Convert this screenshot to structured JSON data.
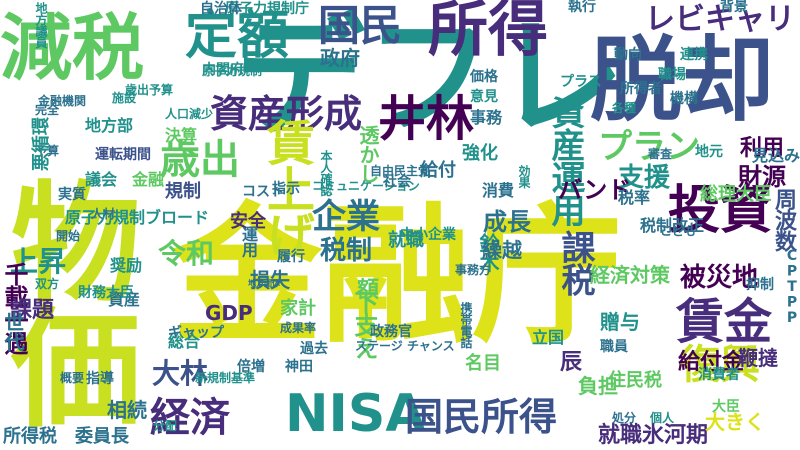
{
  "palette": {
    "lime": "#c8e020",
    "yellow": "#dde318",
    "green": "#5ec962",
    "teal": "#21918c",
    "teal_blue": "#2c728e",
    "blue": "#3b528b",
    "indigo": "#472d7b",
    "violet": "#440154",
    "sea": "#28ae80"
  },
  "words": [
    {
      "text": "デフレ",
      "color": "teal"
    },
    {
      "text": "金融庁",
      "color": "yellow"
    },
    {
      "text": "物価",
      "color": "lime"
    },
    {
      "text": "減税",
      "color": "green"
    },
    {
      "text": "所得",
      "color": "indigo"
    },
    {
      "text": "脱却",
      "color": "blue"
    },
    {
      "text": "国民",
      "color": "blue"
    },
    {
      "text": "定額",
      "color": "teal"
    },
    {
      "text": "レビキャリ",
      "color": "indigo"
    },
    {
      "text": "資産形成",
      "color": "indigo"
    },
    {
      "text": "井林",
      "color": "violet"
    },
    {
      "text": "賃上げ",
      "color": "lime"
    },
    {
      "text": "資産運用",
      "color": "teal"
    },
    {
      "text": "投資",
      "color": "violet"
    },
    {
      "text": "企業",
      "color": "teal_blue"
    },
    {
      "text": "歳出",
      "color": "green"
    },
    {
      "text": "プラン",
      "color": "green"
    },
    {
      "text": "支援",
      "color": "teal"
    },
    {
      "text": "NISA",
      "color": "teal"
    },
    {
      "text": "国民所得",
      "color": "blue"
    },
    {
      "text": "経済",
      "color": "indigo"
    },
    {
      "text": "賃金",
      "color": "indigo"
    },
    {
      "text": "復興",
      "color": "lime"
    },
    {
      "text": "税制",
      "color": "teal_blue"
    },
    {
      "text": "令和",
      "color": "green"
    },
    {
      "text": "上昇",
      "color": "teal"
    },
    {
      "text": "課税",
      "color": "blue"
    },
    {
      "text": "大林",
      "color": "blue"
    },
    {
      "text": "千載一遇",
      "color": "violet"
    },
    {
      "text": "課題",
      "color": "indigo"
    },
    {
      "text": "就職氷河期",
      "color": "indigo"
    },
    {
      "text": "被災地",
      "color": "violet"
    },
    {
      "text": "給付金",
      "color": "violet"
    },
    {
      "text": "財源",
      "color": "violet"
    },
    {
      "text": "利用",
      "color": "violet"
    },
    {
      "text": "周波数",
      "color": "blue"
    },
    {
      "text": "総理大臣",
      "color": "green"
    },
    {
      "text": "成長",
      "color": "teal_blue"
    },
    {
      "text": "バンド",
      "color": "violet"
    },
    {
      "text": "経済対策",
      "color": "green"
    },
    {
      "text": "相続",
      "color": "teal_blue"
    },
    {
      "text": "所得税",
      "color": "teal_blue"
    },
    {
      "text": "委員長",
      "color": "teal_blue"
    },
    {
      "text": "住民税",
      "color": "green"
    },
    {
      "text": "GDP",
      "color": "indigo"
    },
    {
      "text": "家計",
      "color": "green"
    },
    {
      "text": "安全",
      "color": "indigo"
    },
    {
      "text": "額",
      "color": "green"
    },
    {
      "text": "損失",
      "color": "teal_blue"
    },
    {
      "text": "大きく",
      "color": "yellow"
    },
    {
      "text": "下支え",
      "color": "green"
    },
    {
      "text": "贈与",
      "color": "teal"
    },
    {
      "text": "鞭撻",
      "color": "indigo"
    },
    {
      "text": "負担",
      "color": "green"
    },
    {
      "text": "辰",
      "color": "indigo"
    },
    {
      "text": "名目",
      "color": "green"
    },
    {
      "text": "地方部",
      "color": "teal"
    },
    {
      "text": "規制",
      "color": "blue"
    },
    {
      "text": "決算",
      "color": "green"
    },
    {
      "text": "原子力規制庁",
      "color": "teal"
    },
    {
      "text": "原子力規制",
      "color": "teal"
    },
    {
      "text": "原子力規制ブロード",
      "color": "teal"
    },
    {
      "text": "事務",
      "color": "teal_blue"
    },
    {
      "text": "給付",
      "color": "teal_blue"
    },
    {
      "text": "消費",
      "color": "teal_blue"
    },
    {
      "text": "政府",
      "color": "teal_blue"
    },
    {
      "text": "透かし",
      "color": "green"
    },
    {
      "text": "意見",
      "color": "teal"
    },
    {
      "text": "強化",
      "color": "teal"
    },
    {
      "text": "議会",
      "color": "teal"
    },
    {
      "text": "金融",
      "color": "green"
    },
    {
      "text": "実質",
      "color": "teal_blue"
    },
    {
      "text": "奨励",
      "color": "teal"
    },
    {
      "text": "資産",
      "color": "teal_blue"
    },
    {
      "text": "見込み",
      "color": "teal_blue"
    },
    {
      "text": "税率",
      "color": "teal_blue"
    },
    {
      "text": "鈴木",
      "color": "teal"
    },
    {
      "text": "繰越",
      "color": "teal_blue"
    },
    {
      "text": "立国",
      "color": "teal"
    },
    {
      "text": "世代",
      "color": "teal_blue"
    },
    {
      "text": "運転期間",
      "color": "blue"
    },
    {
      "text": "内閣府",
      "color": "teal"
    },
    {
      "text": "財務大臣",
      "color": "teal"
    },
    {
      "text": "指導",
      "color": "teal_blue"
    },
    {
      "text": "過去",
      "color": "teal_blue"
    },
    {
      "text": "政務官",
      "color": "teal_blue"
    },
    {
      "text": "税制改正",
      "color": "teal_blue"
    },
    {
      "text": "総合",
      "color": "teal"
    },
    {
      "text": "ギャップ",
      "color": "teal_blue"
    },
    {
      "text": "運用",
      "color": "teal_blue"
    },
    {
      "text": "就職",
      "color": "teal"
    },
    {
      "text": "大臣",
      "color": "green"
    },
    {
      "text": "消費者",
      "color": "teal"
    },
    {
      "text": "職員",
      "color": "teal_blue"
    },
    {
      "text": "成果率",
      "color": "teal_blue"
    },
    {
      "text": "ステージ チャンス",
      "color": "teal_blue"
    },
    {
      "text": "携帯電話",
      "color": "teal_blue"
    },
    {
      "text": "地方議員",
      "color": "teal"
    },
    {
      "text": "自治体",
      "color": "teal_blue"
    },
    {
      "text": "価格",
      "color": "teal_blue"
    },
    {
      "text": "執行",
      "color": "teal_blue"
    },
    {
      "text": "背景",
      "color": "teal_blue"
    },
    {
      "text": "動向",
      "color": "teal_blue"
    },
    {
      "text": "連携",
      "color": "teal"
    },
    {
      "text": "プラス",
      "color": "teal"
    },
    {
      "text": "所得者",
      "color": "teal_blue"
    },
    {
      "text": "各種",
      "color": "teal"
    },
    {
      "text": "機構",
      "color": "teal_blue"
    },
    {
      "text": "地元",
      "color": "teal"
    },
    {
      "text": "職場",
      "color": "teal"
    },
    {
      "text": "歳出予算",
      "color": "teal"
    },
    {
      "text": "施設",
      "color": "teal"
    },
    {
      "text": "金融機関",
      "color": "teal_blue"
    },
    {
      "text": "人口減少",
      "color": "teal"
    },
    {
      "text": "履行",
      "color": "teal_blue"
    },
    {
      "text": "地方団体",
      "color": "teal_blue"
    },
    {
      "text": "本人確認",
      "color": "teal"
    },
    {
      "text": "コミュニケーション",
      "color": "teal"
    },
    {
      "text": "自由民主党",
      "color": "teal_blue"
    },
    {
      "text": "コスト",
      "color": "teal_blue"
    },
    {
      "text": "指示",
      "color": "teal_blue"
    },
    {
      "text": "社会",
      "color": "teal_blue"
    },
    {
      "text": "効果",
      "color": "teal"
    },
    {
      "text": "審査",
      "color": "teal_blue"
    },
    {
      "text": "人材",
      "color": "teal_blue"
    },
    {
      "text": "中小企業",
      "color": "teal"
    },
    {
      "text": "事務方",
      "color": "teal_blue"
    },
    {
      "text": "こども",
      "color": "teal_blue"
    },
    {
      "text": "抑制",
      "color": "teal_blue"
    },
    {
      "text": "双方",
      "color": "teal"
    },
    {
      "text": "新規制基準",
      "color": "teal"
    },
    {
      "text": "倍増",
      "color": "teal_blue"
    },
    {
      "text": "神田",
      "color": "teal_blue"
    },
    {
      "text": "予算",
      "color": "teal_blue"
    },
    {
      "text": "完全",
      "color": "teal_blue"
    },
    {
      "text": "開始",
      "color": "teal_blue"
    },
    {
      "text": "概要",
      "color": "teal_blue"
    },
    {
      "text": "分配",
      "color": "teal"
    },
    {
      "text": "CPTPP",
      "color": "teal_blue"
    },
    {
      "text": "処分",
      "color": "teal_blue"
    },
    {
      "text": "個人",
      "color": "teal"
    },
    {
      "text": "悪循環",
      "color": "teal"
    },
    {
      "text": "迅速",
      "color": "teal_blue"
    },
    {
      "text": "規制委員会",
      "color": "blue"
    }
  ]
}
